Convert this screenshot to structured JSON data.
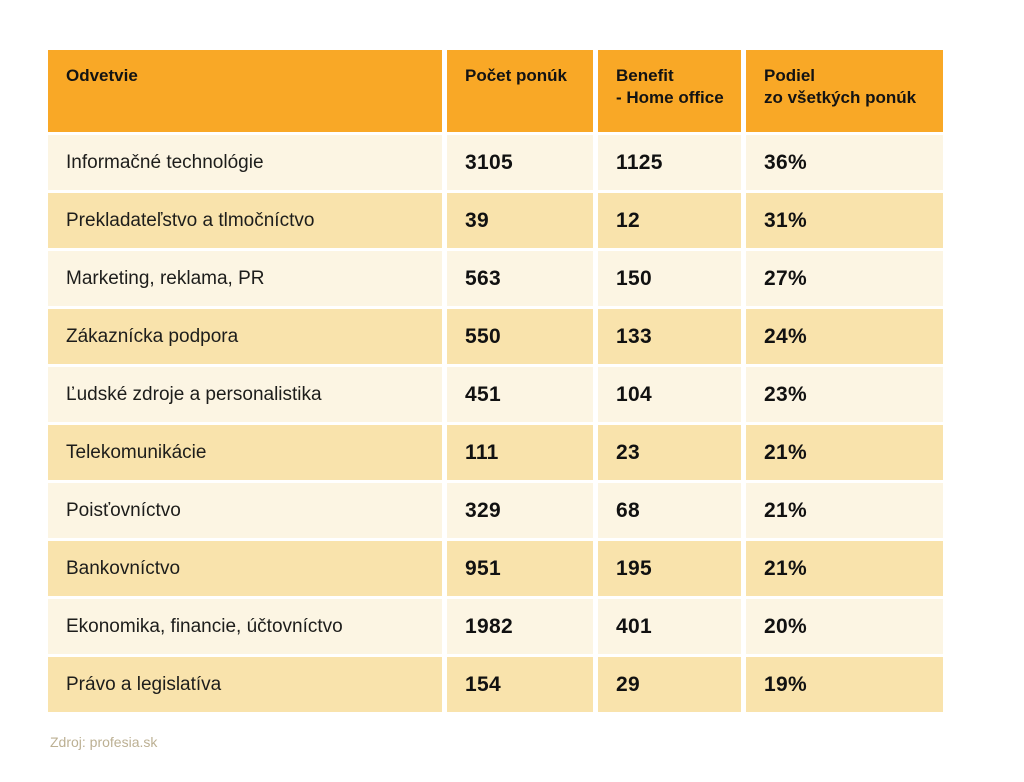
{
  "header": {
    "industry": "Odvetvie",
    "offers": "Počet ponúk",
    "benefit": "Benefit\n- Home office",
    "share": "Podiel\nzo všetkých ponúk"
  },
  "chart_data": {
    "type": "table",
    "columns": [
      "Odvetvie",
      "Počet ponúk",
      "Benefit - Home office",
      "Podiel zo všetkých ponúk"
    ],
    "rows": [
      [
        "Informačné technológie",
        "3105",
        "1125",
        "36%"
      ],
      [
        "Prekladateľstvo a tlmočníctvo",
        "39",
        "12",
        "31%"
      ],
      [
        "Marketing, reklama, PR",
        "563",
        "150",
        "27%"
      ],
      [
        "Zákaznícka podpora",
        "550",
        "133",
        "24%"
      ],
      [
        "Ľudské zdroje a personalistika",
        "451",
        "104",
        "23%"
      ],
      [
        "Telekomunikácie",
        "111",
        "23",
        "21%"
      ],
      [
        "Poisťovníctvo",
        "329",
        "68",
        "21%"
      ],
      [
        "Bankovníctvo",
        "951",
        "195",
        "21%"
      ],
      [
        "Ekonomika, financie, účtovníctvo",
        "1982",
        "401",
        "20%"
      ],
      [
        "Právo a legislatíva",
        "154",
        "29",
        "19%"
      ]
    ]
  },
  "footer": {
    "source": "Zdroj: profesia.sk"
  },
  "colors": {
    "page_bg": "#ffffff",
    "header_bg": "#F9A826",
    "row_light_bg": "#FCF5E3",
    "row_dark_bg": "#F9E3AC",
    "source_text": "#BCB093"
  }
}
